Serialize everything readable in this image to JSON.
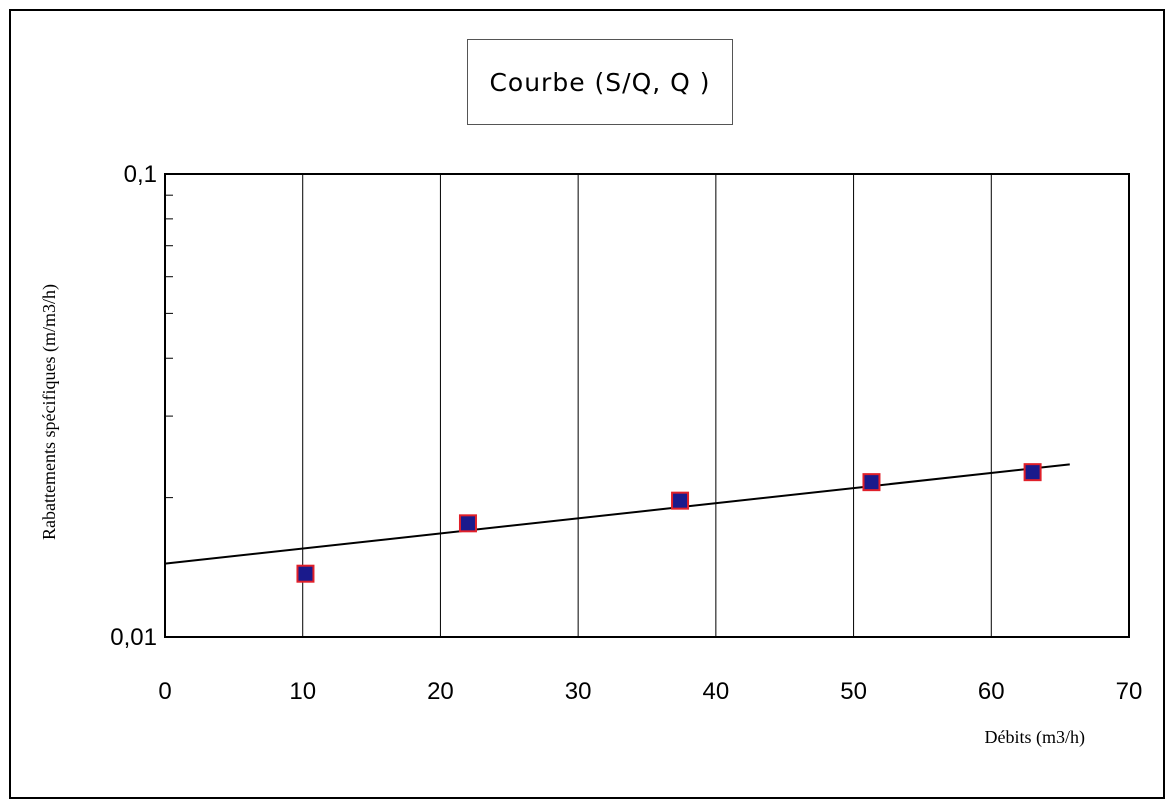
{
  "chart_data": {
    "type": "scatter",
    "title": "Courbe (S/Q, Q )",
    "xlabel": "Débits (m3/h)",
    "ylabel": "Rabattements spécifiques (m/m3/h)",
    "xlim": [
      0,
      70
    ],
    "ylim": [
      0.01,
      0.1
    ],
    "y_scale": "log",
    "x_ticks": [
      "0",
      "10",
      "20",
      "30",
      "40",
      "50",
      "60",
      "70"
    ],
    "y_ticks": [
      "0,1",
      "0,01"
    ],
    "grid": "vertical",
    "series": [
      {
        "points": [
          {
            "x": 10.2,
            "y": 0.0137
          },
          {
            "x": 22.0,
            "y": 0.0176
          },
          {
            "x": 37.4,
            "y": 0.0197
          },
          {
            "x": 51.3,
            "y": 0.0216
          },
          {
            "x": 63.0,
            "y": 0.0227
          }
        ]
      }
    ],
    "trendline": {
      "x_start": 0,
      "y_start": 0.0144,
      "x_end": 65.7,
      "y_end": 0.0236
    },
    "marker_fill": "#1a1a8c",
    "marker_stroke": "#e0202a"
  }
}
